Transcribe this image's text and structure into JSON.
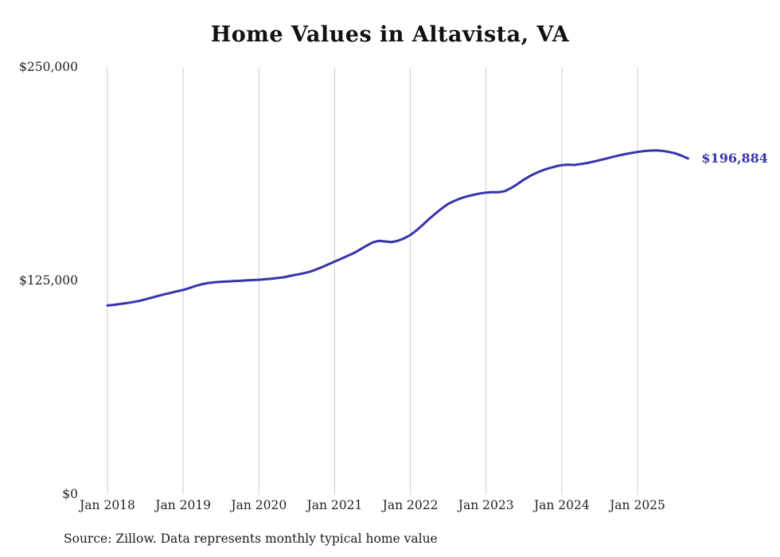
{
  "source": "Source: Zillow. Data represents monthly typical home value",
  "chart_data": {
    "type": "line",
    "title": "Home Values in Altavista, VA",
    "xlabel": "",
    "ylabel": "",
    "ylim": [
      0,
      250000
    ],
    "grid": "vertical-only",
    "line_color": "#3734ad",
    "gridline_color": "#cccccc",
    "end_label": "$196,884",
    "end_value": 196884,
    "yticks": [
      {
        "label": "$0",
        "value": 0
      },
      {
        "label": "$125,000",
        "value": 125000
      },
      {
        "label": "$250,000",
        "value": 250000
      }
    ],
    "xticks": [
      {
        "label": "Jan 2018",
        "month_index": 0
      },
      {
        "label": "Jan 2019",
        "month_index": 12
      },
      {
        "label": "Jan 2020",
        "month_index": 24
      },
      {
        "label": "Jan 2021",
        "month_index": 36
      },
      {
        "label": "Jan 2022",
        "month_index": 48
      },
      {
        "label": "Jan 2023",
        "month_index": 60
      },
      {
        "label": "Jan 2024",
        "month_index": 72
      },
      {
        "label": "Jan 2025",
        "month_index": 84
      }
    ],
    "x": [
      "2018-01",
      "2018-02",
      "2018-03",
      "2018-04",
      "2018-05",
      "2018-06",
      "2018-07",
      "2018-08",
      "2018-09",
      "2018-10",
      "2018-11",
      "2018-12",
      "2019-01",
      "2019-02",
      "2019-03",
      "2019-04",
      "2019-05",
      "2019-06",
      "2019-07",
      "2019-08",
      "2019-09",
      "2019-10",
      "2019-11",
      "2019-12",
      "2020-01",
      "2020-02",
      "2020-03",
      "2020-04",
      "2020-05",
      "2020-06",
      "2020-07",
      "2020-08",
      "2020-09",
      "2020-10",
      "2020-11",
      "2020-12",
      "2021-01",
      "2021-02",
      "2021-03",
      "2021-04",
      "2021-05",
      "2021-06",
      "2021-07",
      "2021-08",
      "2021-09",
      "2021-10",
      "2021-11",
      "2021-12",
      "2022-01",
      "2022-02",
      "2022-03",
      "2022-04",
      "2022-05",
      "2022-06",
      "2022-07",
      "2022-08",
      "2022-09",
      "2022-10",
      "2022-11",
      "2022-12",
      "2023-01",
      "2023-02",
      "2023-03",
      "2023-04",
      "2023-05",
      "2023-06",
      "2023-07",
      "2023-08",
      "2023-09",
      "2023-10",
      "2023-11",
      "2023-12",
      "2024-01",
      "2024-02",
      "2024-03",
      "2024-04",
      "2024-05",
      "2024-06",
      "2024-07",
      "2024-08",
      "2024-09",
      "2024-10",
      "2024-11",
      "2024-12",
      "2025-01",
      "2025-02",
      "2025-03",
      "2025-04",
      "2025-05",
      "2025-06",
      "2025-07",
      "2025-08",
      "2025-09"
    ],
    "values": [
      110800,
      111200,
      111700,
      112200,
      112800,
      113500,
      114400,
      115400,
      116400,
      117400,
      118200,
      119100,
      119900,
      121100,
      122300,
      123300,
      124000,
      124400,
      124700,
      124900,
      125100,
      125300,
      125500,
      125700,
      125900,
      126200,
      126500,
      126900,
      127400,
      128200,
      128900,
      129600,
      130500,
      131800,
      133300,
      134900,
      136500,
      138100,
      139800,
      141400,
      143500,
      145700,
      147700,
      148700,
      148300,
      147900,
      148700,
      150100,
      152100,
      154900,
      158100,
      161600,
      164700,
      167700,
      170300,
      172100,
      173600,
      174700,
      175600,
      176400,
      176900,
      177200,
      177100,
      177800,
      179600,
      182000,
      184500,
      186700,
      188500,
      190000,
      191200,
      192200,
      193000,
      193300,
      193100,
      193600,
      194200,
      195000,
      195900,
      196800,
      197700,
      198600,
      199400,
      200100,
      200700,
      201200,
      201500,
      201600,
      201300,
      200700,
      199800,
      198500,
      196884
    ]
  }
}
